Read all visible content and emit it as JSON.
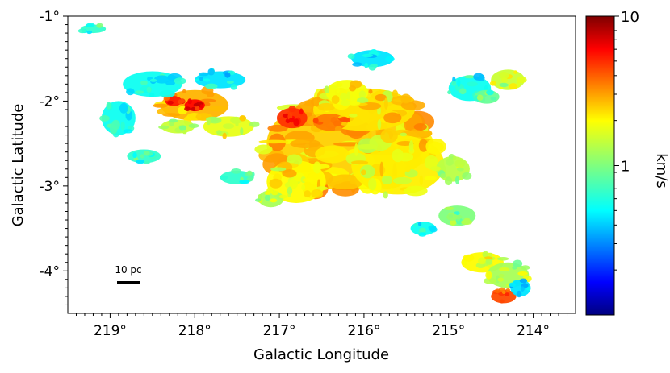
{
  "chart_data": {
    "type": "heatmap",
    "xlabel": "Galactic Longitude",
    "ylabel": "Galactic Latitude",
    "xlim": [
      219.5,
      213.5
    ],
    "ylim": [
      -4.5,
      -1.0
    ],
    "x_ticks": [
      {
        "value": 219,
        "label": "219°"
      },
      {
        "value": 218,
        "label": "218°"
      },
      {
        "value": 217,
        "label": "217°"
      },
      {
        "value": 216,
        "label": "216°"
      },
      {
        "value": 215,
        "label": "215°"
      },
      {
        "value": 214,
        "label": "214°"
      }
    ],
    "y_ticks": [
      {
        "value": -1,
        "label": "-1°"
      },
      {
        "value": -2,
        "label": "-2°"
      },
      {
        "value": -3,
        "label": "-3°"
      },
      {
        "value": -4,
        "label": "-4°"
      }
    ],
    "scale_bar": {
      "label": "10 pc"
    },
    "colorbar": {
      "label": "km/s",
      "scale": "log",
      "range": [
        0.1,
        10
      ],
      "ticks": [
        {
          "value": 1,
          "label": "1"
        },
        {
          "value": 10,
          "label": "10"
        }
      ],
      "colormap": "jet",
      "colors": [
        "#00007f",
        "#0000ff",
        "#007fff",
        "#00ffff",
        "#7fff7f",
        "#ffff00",
        "#ff7f00",
        "#ff0000",
        "#7f0000"
      ]
    },
    "regions": [
      {
        "l": 216.2,
        "b": -2.5,
        "dl": 0.95,
        "db": 0.55,
        "value": 2.2
      },
      {
        "l": 215.6,
        "b": -2.75,
        "dl": 0.55,
        "db": 0.35,
        "value": 1.9
      },
      {
        "l": 216.8,
        "b": -2.95,
        "dl": 0.35,
        "db": 0.25,
        "value": 1.8
      },
      {
        "l": 216.0,
        "b": -2.1,
        "dl": 0.6,
        "db": 0.25,
        "value": 2.0
      },
      {
        "l": 216.85,
        "b": -2.2,
        "dl": 0.18,
        "db": 0.12,
        "value": 4.5
      },
      {
        "l": 216.4,
        "b": -2.25,
        "dl": 0.2,
        "db": 0.1,
        "value": 3.2
      },
      {
        "l": 216.2,
        "b": -1.9,
        "dl": 0.25,
        "db": 0.15,
        "value": 1.7
      },
      {
        "l": 218.0,
        "b": -2.05,
        "dl": 0.4,
        "db": 0.18,
        "value": 2.5
      },
      {
        "l": 218.0,
        "b": -2.05,
        "dl": 0.12,
        "db": 0.07,
        "value": 5.5
      },
      {
        "l": 218.25,
        "b": -2.0,
        "dl": 0.1,
        "db": 0.06,
        "value": 5.0
      },
      {
        "l": 217.6,
        "b": -2.3,
        "dl": 0.3,
        "db": 0.12,
        "value": 1.6
      },
      {
        "l": 218.2,
        "b": -2.3,
        "dl": 0.2,
        "db": 0.08,
        "value": 1.4
      },
      {
        "l": 218.5,
        "b": -1.8,
        "dl": 0.35,
        "db": 0.15,
        "value": 0.6
      },
      {
        "l": 217.7,
        "b": -1.75,
        "dl": 0.3,
        "db": 0.1,
        "value": 0.5
      },
      {
        "l": 218.9,
        "b": -2.2,
        "dl": 0.2,
        "db": 0.2,
        "value": 0.6
      },
      {
        "l": 217.1,
        "b": -3.15,
        "dl": 0.15,
        "db": 0.1,
        "value": 1.2
      },
      {
        "l": 214.75,
        "b": -1.85,
        "dl": 0.25,
        "db": 0.15,
        "value": 0.6
      },
      {
        "l": 214.3,
        "b": -1.75,
        "dl": 0.2,
        "db": 0.12,
        "value": 1.4
      },
      {
        "l": 214.55,
        "b": -1.95,
        "dl": 0.15,
        "db": 0.08,
        "value": 0.9
      },
      {
        "l": 215.9,
        "b": -1.5,
        "dl": 0.25,
        "db": 0.1,
        "value": 0.5
      },
      {
        "l": 214.95,
        "b": -2.8,
        "dl": 0.2,
        "db": 0.15,
        "value": 1.3
      },
      {
        "l": 214.9,
        "b": -3.35,
        "dl": 0.22,
        "db": 0.12,
        "value": 1.0
      },
      {
        "l": 214.6,
        "b": -3.9,
        "dl": 0.25,
        "db": 0.12,
        "value": 1.8
      },
      {
        "l": 214.3,
        "b": -4.05,
        "dl": 0.25,
        "db": 0.15,
        "value": 1.2
      },
      {
        "l": 214.35,
        "b": -4.3,
        "dl": 0.15,
        "db": 0.08,
        "value": 4.0
      },
      {
        "l": 214.15,
        "b": -4.2,
        "dl": 0.12,
        "db": 0.1,
        "value": 0.5
      },
      {
        "l": 215.3,
        "b": -3.5,
        "dl": 0.15,
        "db": 0.08,
        "value": 0.6
      },
      {
        "l": 218.6,
        "b": -2.65,
        "dl": 0.2,
        "db": 0.08,
        "value": 0.7
      },
      {
        "l": 217.5,
        "b": -2.9,
        "dl": 0.2,
        "db": 0.08,
        "value": 0.7
      },
      {
        "l": 219.2,
        "b": -1.15,
        "dl": 0.15,
        "db": 0.05,
        "value": 0.7
      }
    ]
  }
}
